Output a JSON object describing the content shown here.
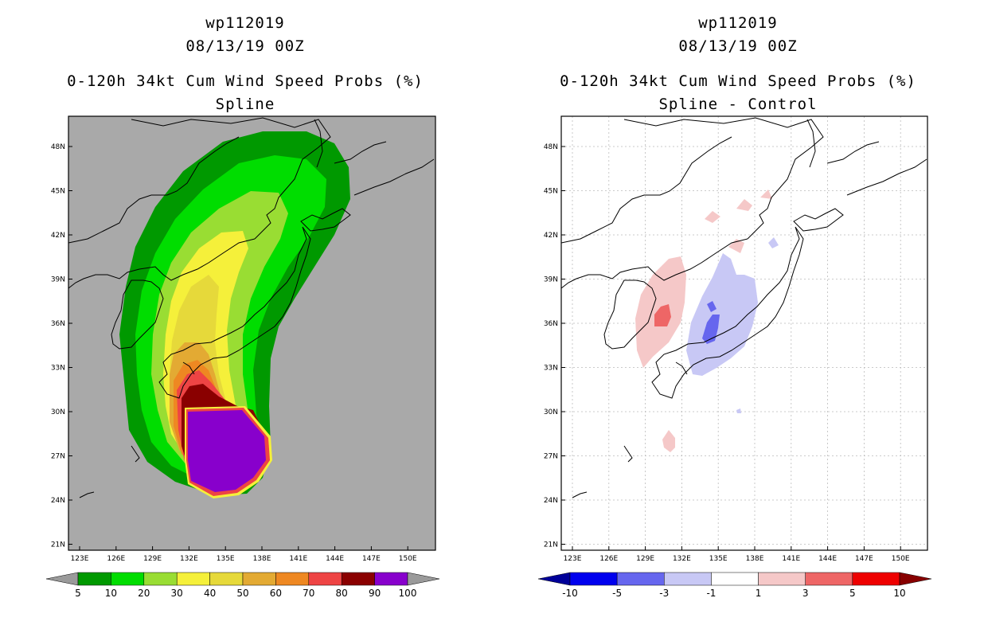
{
  "left_panel": {
    "storm_id": "wp112019",
    "datetime": "08/13/19 00Z",
    "product": "0-120h 34kt Cum Wind Speed Probs (%)",
    "subtitle": "Spline",
    "lat_labels": [
      "48N",
      "45N",
      "42N",
      "39N",
      "36N",
      "33N",
      "30N",
      "27N",
      "24N",
      "21N"
    ],
    "lon_labels": [
      "123E",
      "126E",
      "129E",
      "132E",
      "135E",
      "138E",
      "141E",
      "144E",
      "147E",
      "150E"
    ],
    "colorbar": {
      "labels": [
        "5",
        "10",
        "20",
        "30",
        "40",
        "50",
        "60",
        "70",
        "80",
        "90",
        "100"
      ],
      "colors": [
        "#9a9a9a",
        "#009900",
        "#00dd00",
        "#99dd33",
        "#f5f03a",
        "#e6d93a",
        "#e3aa33",
        "#ee8822",
        "#ee4444",
        "#8a0000",
        "#8800cc",
        "#9a9a9a"
      ]
    },
    "background": "#a9a9a9"
  },
  "right_panel": {
    "storm_id": "wp112019",
    "datetime": "08/13/19 00Z",
    "product": "0-120h 34kt Cum Wind Speed Probs (%)",
    "subtitle": "Spline - Control",
    "lat_labels": [
      "48N",
      "45N",
      "42N",
      "39N",
      "36N",
      "33N",
      "30N",
      "27N",
      "24N",
      "21N"
    ],
    "lon_labels": [
      "123E",
      "126E",
      "129E",
      "132E",
      "135E",
      "138E",
      "141E",
      "144E",
      "147E",
      "150E"
    ],
    "colorbar": {
      "labels": [
        "-10",
        "-5",
        "-3",
        "-1",
        "1",
        "3",
        "5",
        "10"
      ],
      "colors": [
        "#000099",
        "#0000ee",
        "#6666ee",
        "#c8c8f5",
        "#ffffff",
        "#f5c8c8",
        "#ee6666",
        "#ee0000",
        "#880000"
      ]
    },
    "background": "#ffffff"
  }
}
